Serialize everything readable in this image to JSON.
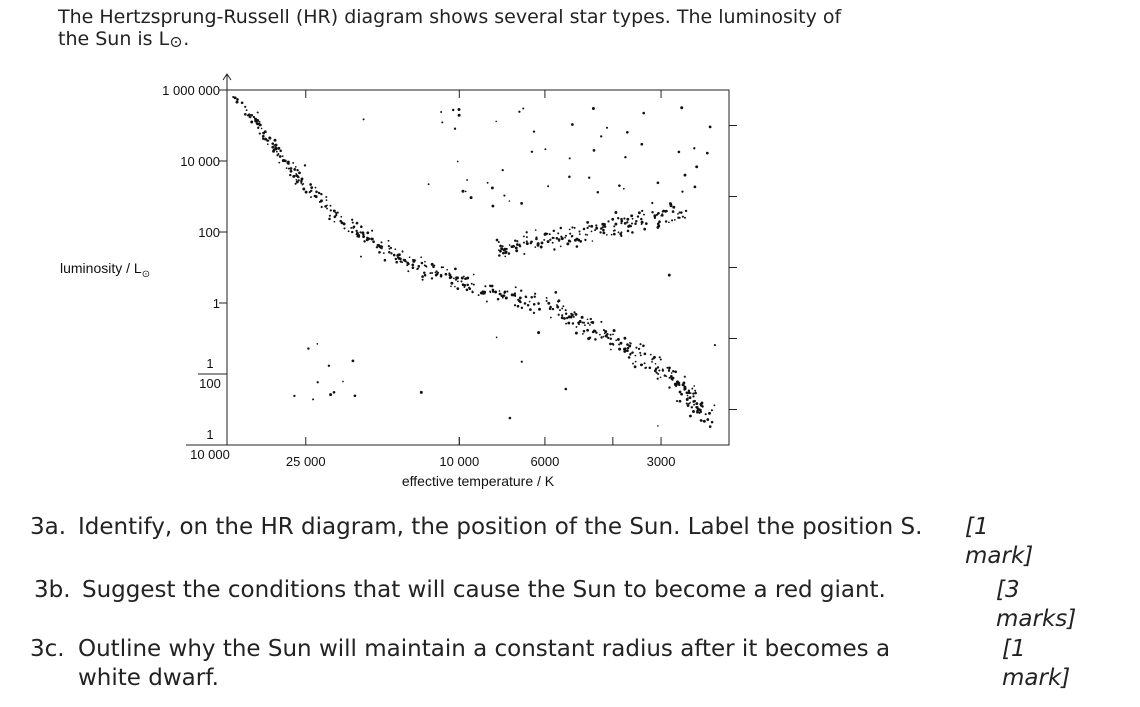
{
  "intro": {
    "line1": "The Hertzsprung-Russell (HR) diagram shows several star types. The luminosity of",
    "line2_prefix": "the Sun is L",
    "line2_suffix": "."
  },
  "chart_data": {
    "type": "scatter",
    "ylabel": "luminosity / L",
    "xlabel": "effective temperature / K",
    "y_scale": "log",
    "x_scale": "log-reversed",
    "y_ticks": [
      {
        "value": 1000000,
        "label": "1 000 000"
      },
      {
        "value": 10000,
        "label": "10 000"
      },
      {
        "value": 100,
        "label": "100"
      },
      {
        "value": 1,
        "label": "1"
      },
      {
        "value": 0.01,
        "num": "1",
        "den": "100"
      },
      {
        "value": 0.0001,
        "num": "1",
        "den": "10 000"
      }
    ],
    "x_ticks": [
      {
        "value": 25000,
        "label": "25 000"
      },
      {
        "value": 10000,
        "label": "10 000"
      },
      {
        "value": 6000,
        "label": "6000"
      },
      {
        "value": 3000,
        "label": "3000"
      }
    ],
    "xlim": [
      40000,
      2000
    ],
    "ylim": [
      0.0001,
      1000000
    ],
    "grid": false,
    "groups": [
      {
        "region": "main sequence",
        "from": {
          "x": 38000,
          "y": 700000
        },
        "to": {
          "x": 2200,
          "y": 0.0005
        }
      },
      {
        "region": "red giants",
        "from": {
          "x": 7500,
          "y": 100
        },
        "to": {
          "x": 2300,
          "y": 3000
        }
      },
      {
        "region": "supergiants",
        "from": {
          "x": 9000,
          "y": 20000
        },
        "to": {
          "x": 2500,
          "y": 500000
        }
      },
      {
        "region": "white dwarfs",
        "from": {
          "x": 25000,
          "y": 0.05
        },
        "to": {
          "x": 8000,
          "y": 0.0005
        }
      }
    ]
  },
  "questions": [
    {
      "num": "3a.",
      "text": "Identify, on the HR diagram, the position of the Sun. Label the position S.",
      "marks": "[1 mark]"
    },
    {
      "num": "3b.",
      "text": "Suggest the conditions that will cause the Sun to become a red giant.",
      "marks": "[3 marks]"
    },
    {
      "num": "3c.",
      "line1": "Outline why the Sun will maintain a constant radius after it becomes a",
      "line2": "white dwarf.",
      "marks": "[1 mark]"
    }
  ]
}
